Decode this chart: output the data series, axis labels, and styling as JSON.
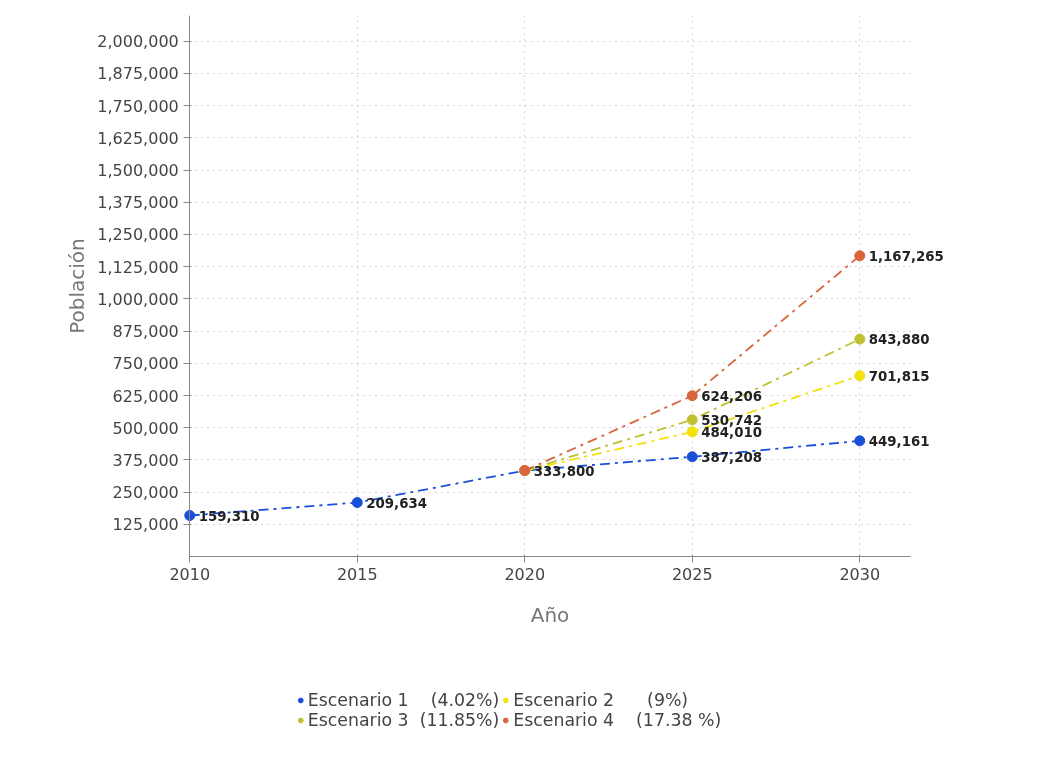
{
  "chart_data": {
    "type": "line",
    "xlabel": "Año",
    "ylabel": "Población",
    "xlim": [
      2010,
      2031.5
    ],
    "xticks": [
      2010,
      2015,
      2020,
      2025,
      2030
    ],
    "ylim": [
      0,
      2100000
    ],
    "yticks": [
      {
        "value": 125000,
        "label": "125,000"
      },
      {
        "value": 250000,
        "label": "250,000"
      },
      {
        "value": 375000,
        "label": "375,000"
      },
      {
        "value": 500000,
        "label": "500,000"
      },
      {
        "value": 625000,
        "label": "625,000"
      },
      {
        "value": 750000,
        "label": "750,000"
      },
      {
        "value": 875000,
        "label": "875,000"
      },
      {
        "value": 1000000,
        "label": "1,000,000"
      },
      {
        "value": 1125000,
        "label": "1,125,000"
      },
      {
        "value": 1250000,
        "label": "1,250,000"
      },
      {
        "value": 1375000,
        "label": "1,375,000"
      },
      {
        "value": 1500000,
        "label": "1,500,000"
      },
      {
        "value": 1625000,
        "label": "1,625,000"
      },
      {
        "value": 1750000,
        "label": "1,750,000"
      },
      {
        "value": 1875000,
        "label": "1,875,000"
      },
      {
        "value": 2000000,
        "label": "2,000,000"
      }
    ],
    "grid": true,
    "legend": "bottom",
    "marker": "circle",
    "line_style": "dashed",
    "series": [
      {
        "name": "Escenario 1    (4.02%)",
        "color": "#1a50d8",
        "x": [
          2010,
          2015,
          2020,
          2025,
          2030
        ],
        "values": [
          159310,
          209634,
          333800,
          387208,
          449161
        ],
        "value_labels": [
          "159,310",
          "209,634",
          "333,800",
          "387,208",
          "449,161"
        ]
      },
      {
        "name": "Escenario 2      (9%)",
        "color": "#f2e20c",
        "x": [
          2020,
          2025,
          2030
        ],
        "values": [
          333800,
          484010,
          701815
        ],
        "value_labels": [
          null,
          "484,010",
          "701,815"
        ]
      },
      {
        "name": "Escenario 3  (11.85%)",
        "color": "#bfc132",
        "x": [
          2020,
          2025,
          2030
        ],
        "values": [
          333800,
          530742,
          843880
        ],
        "value_labels": [
          null,
          "530,742",
          "843,880"
        ]
      },
      {
        "name": "Escenario 4    (17.38 %)",
        "color": "#d8663a",
        "x": [
          2020,
          2025,
          2030
        ],
        "values": [
          333800,
          624206,
          1167265
        ],
        "value_labels": [
          null,
          "624,206",
          "1,167,265"
        ]
      }
    ]
  }
}
